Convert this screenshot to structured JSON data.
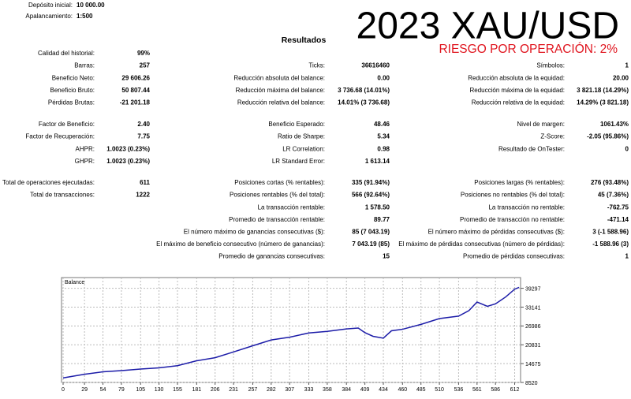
{
  "header": {
    "deposit_label": "Depósito inicial:",
    "deposit": "10 000.00",
    "leverage_label": "Apalancamiento:",
    "leverage": "1:500",
    "title": "2023 XAU/USD",
    "subtitle": "RIESGO POR OPERACIÓN: 2%",
    "section": "Resultados"
  },
  "groups": [
    [
      {
        "left": [
          "Calidad del historial:",
          "99%"
        ]
      },
      {
        "left": [
          "Barras:",
          "257"
        ],
        "middle": [
          "Ticks:",
          "36616460"
        ],
        "right": [
          "Símbolos:",
          "1"
        ]
      },
      {
        "left": [
          "Beneficio Neto:",
          "29 606.26"
        ],
        "middle": [
          "Reducción absoluta del balance:",
          "0.00"
        ],
        "right": [
          "Reducción absoluta de la equidad:",
          "20.00"
        ]
      },
      {
        "left": [
          "Beneficio Bruto:",
          "50 807.44"
        ],
        "middle": [
          "Reducción máxima del balance:",
          "3 736.68 (14.01%)"
        ],
        "right": [
          "Reducción máxima de la equidad:",
          "3 821.18 (14.29%)"
        ]
      },
      {
        "left": [
          "Pérdidas Brutas:",
          "-21 201.18"
        ],
        "middle": [
          "Reducción relativa del balance:",
          "14.01% (3 736.68)"
        ],
        "right": [
          "Reducción relativa de la equidad:",
          "14.29% (3 821.18)"
        ]
      }
    ],
    [
      {
        "left": [
          "Factor de Beneficio:",
          "2.40"
        ],
        "middle": [
          "Beneficio Esperado:",
          "48.46"
        ],
        "right": [
          "Nivel de margen:",
          "1061.43%"
        ]
      },
      {
        "left": [
          "Factor de Recuperación:",
          "7.75"
        ],
        "middle": [
          "Ratio de Sharpe:",
          "5.34"
        ],
        "right": [
          "Z-Score:",
          "-2.05 (95.86%)"
        ]
      },
      {
        "left": [
          "AHPR:",
          "1.0023 (0.23%)"
        ],
        "middle": [
          "LR Correlation:",
          "0.98"
        ],
        "right": [
          "Resultado de OnTester:",
          "0"
        ]
      },
      {
        "left": [
          "GHPR:",
          "1.0023 (0.23%)"
        ],
        "middle": [
          "LR Standard Error:",
          "1 613.14"
        ]
      }
    ],
    [
      {
        "left": [
          "Total de operaciones ejecutadas:",
          "611"
        ],
        "middle": [
          "Posiciones cortas (% rentables):",
          "335 (91.94%)"
        ],
        "right": [
          "Posiciones largas (% rentables):",
          "276 (93.48%)"
        ]
      },
      {
        "left": [
          "Total de transacciones:",
          "1222"
        ],
        "middle": [
          "Posiciones rentables (% del total):",
          "566 (92.64%)"
        ],
        "right": [
          "Posiciones no rentables (% del total):",
          "45 (7.36%)"
        ]
      },
      {
        "middle": [
          "La transacción rentable:",
          "1 578.50"
        ],
        "right": [
          "La transacción no rentable:",
          "-762.75"
        ]
      },
      {
        "middle": [
          "Promedio de transacción rentable:",
          "89.77"
        ],
        "right": [
          "Promedio de transacción no rentable:",
          "-471.14"
        ]
      },
      {
        "middle": [
          "El número máximo de ganancias consecutivas ($):",
          "85 (7 043.19)"
        ],
        "right": [
          "El número máximo de pérdidas consecutivas ($):",
          "3 (-1 588.96)"
        ]
      },
      {
        "middle": [
          "El máximo de beneficio consecutivo (número de ganancias):",
          "7 043.19 (85)"
        ],
        "right": [
          "El máximo de pérdidas consecutivas (número de pérdidas):",
          "-1 588.96 (3)"
        ]
      },
      {
        "middle": [
          "Promedio de ganancias consecutivas:",
          "15"
        ],
        "right": [
          "Promedio de pérdidas consecutivas:",
          "1"
        ]
      }
    ]
  ],
  "chart_data": {
    "type": "line",
    "title": "Balance",
    "color": "#1c1ca8",
    "grid": true,
    "x": [
      0,
      29,
      54,
      79,
      105,
      130,
      155,
      181,
      206,
      231,
      257,
      282,
      307,
      333,
      358,
      384,
      400,
      409,
      420,
      434,
      445,
      460,
      485,
      510,
      536,
      550,
      561,
      575,
      586,
      600,
      612,
      618
    ],
    "values": [
      10000,
      11200,
      12000,
      12400,
      12900,
      13300,
      14000,
      15600,
      16600,
      18500,
      20500,
      22400,
      23300,
      24700,
      25200,
      26000,
      26300,
      24800,
      23600,
      23000,
      25400,
      25900,
      27500,
      29400,
      30200,
      32000,
      34800,
      33400,
      34200,
      36500,
      39000,
      39606
    ],
    "xlim": [
      0,
      620
    ],
    "ylim": [
      8520,
      42800
    ],
    "xticks": [
      0,
      29,
      54,
      79,
      105,
      130,
      155,
      181,
      206,
      231,
      257,
      282,
      307,
      333,
      358,
      384,
      409,
      434,
      460,
      485,
      510,
      536,
      561,
      586,
      612
    ],
    "yticks": [
      8520,
      14675,
      20831,
      26986,
      33141,
      39297
    ]
  }
}
